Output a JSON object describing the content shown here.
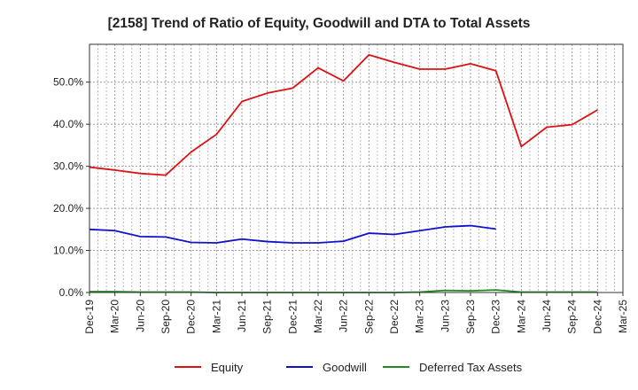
{
  "chart_data": {
    "type": "line",
    "title": "[2158]  Trend of Ratio of Equity, Goodwill and DTA to Total Assets",
    "xlabel": "",
    "ylabel": "",
    "x_ticks": [
      "Dec-19",
      "Mar-20",
      "Jun-20",
      "Sep-20",
      "Dec-20",
      "Mar-21",
      "Jun-21",
      "Sep-21",
      "Dec-21",
      "Mar-22",
      "Jun-22",
      "Sep-22",
      "Dec-22",
      "Mar-23",
      "Jun-23",
      "Sep-23",
      "Dec-23",
      "Mar-24",
      "Jun-24",
      "Sep-24",
      "Dec-24",
      "Mar-25"
    ],
    "y_ticks": [
      "0.0%",
      "10.0%",
      "20.0%",
      "30.0%",
      "40.0%",
      "50.0%"
    ],
    "ylim": [
      0,
      59
    ],
    "grid": true,
    "legend_position": "bottom",
    "series": [
      {
        "name": "Equity",
        "color": "#dd1111",
        "values": [
          29.8,
          29.1,
          28.3,
          27.9,
          33.4,
          37.6,
          45.4,
          47.4,
          48.6,
          53.4,
          50.3,
          56.5,
          54.7,
          53.1,
          53.1,
          54.4,
          52.7,
          34.7,
          39.3,
          39.9,
          43.4,
          null
        ]
      },
      {
        "name": "Goodwill",
        "color": "#1111cc",
        "values": [
          15.0,
          14.7,
          13.3,
          13.2,
          11.9,
          11.8,
          12.7,
          12.1,
          11.8,
          11.8,
          12.2,
          14.1,
          13.8,
          14.7,
          15.6,
          15.9,
          15.1,
          null,
          null,
          null,
          null,
          null
        ]
      },
      {
        "name": "Deferred Tax Assets",
        "color": "#228822",
        "values": [
          0.2,
          0.2,
          0.1,
          0.1,
          0.1,
          0.0,
          0.0,
          0.0,
          0.0,
          0.0,
          0.0,
          0.0,
          0.0,
          0.1,
          0.5,
          0.4,
          0.6,
          0.1,
          0.1,
          0.1,
          0.1,
          null
        ]
      }
    ]
  }
}
